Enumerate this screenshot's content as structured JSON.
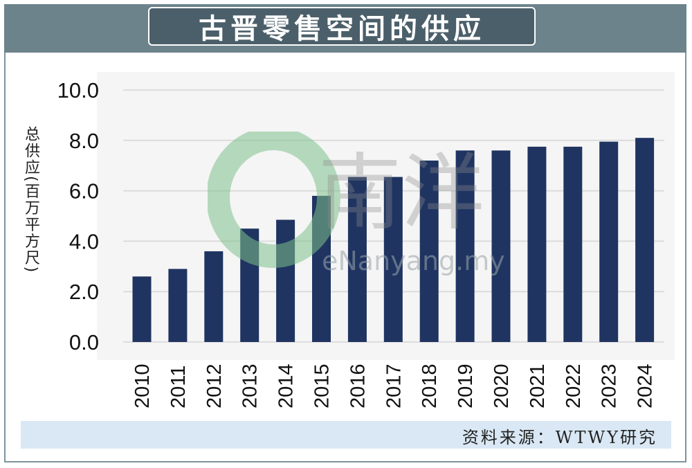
{
  "header": {
    "title": "古晋零售空间的供应"
  },
  "watermark": {
    "brand": "南洋",
    "site": "eNanyang.my"
  },
  "footer": {
    "source": "资料来源：WTWY研究"
  },
  "colors": {
    "bar": "#1f3461",
    "title_bg": "#4b5f6a",
    "banner": "#6d838c",
    "source_bg": "#d9e8f4",
    "grid": "#dcdcdc"
  },
  "chart_data": {
    "type": "bar",
    "title": "古晋零售空间的供应",
    "ylabel": "总供应(百万平方尺)",
    "xlabel": "",
    "ylim": [
      0,
      10
    ],
    "yticks": [
      "0.0",
      "2.0",
      "4.0",
      "6.0",
      "8.0",
      "10.0"
    ],
    "grid": true,
    "categories": [
      "2010",
      "2011",
      "2012",
      "2013",
      "2014",
      "2015",
      "2016",
      "2017",
      "2018",
      "2019",
      "2020",
      "2021",
      "2022",
      "2023",
      "2024"
    ],
    "values": [
      2.6,
      2.9,
      3.6,
      4.5,
      4.85,
      5.8,
      6.55,
      6.55,
      7.2,
      7.6,
      7.6,
      7.75,
      7.75,
      7.95,
      8.1
    ]
  }
}
